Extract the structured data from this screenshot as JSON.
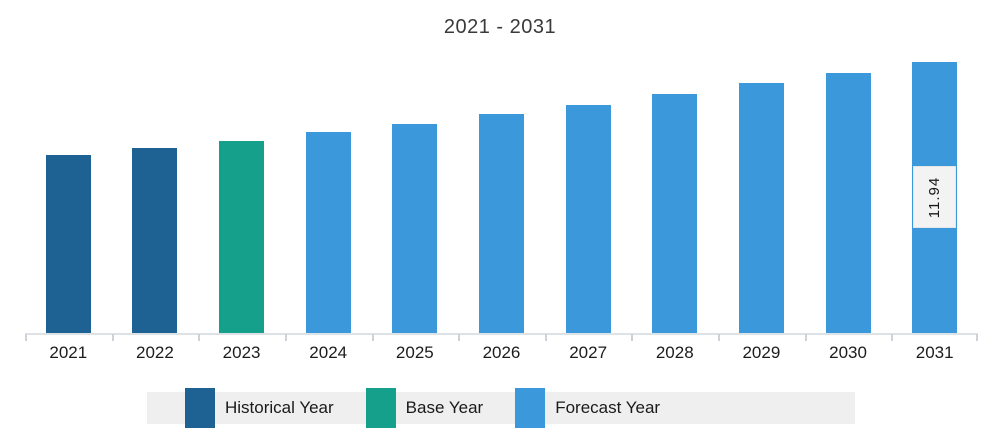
{
  "chart_data": {
    "type": "bar",
    "title": "2021 - 2031",
    "xlabel": "",
    "ylabel": "",
    "grid": false,
    "y_axis_visible": false,
    "ylim": [
      0,
      11.94
    ],
    "legend_position": "bottom",
    "categories": [
      "2021",
      "2022",
      "2023",
      "2024",
      "2025",
      "2026",
      "2027",
      "2028",
      "2029",
      "2030",
      "2031"
    ],
    "values": [
      7.84,
      8.15,
      8.46,
      8.86,
      9.21,
      9.64,
      10.05,
      10.53,
      11.02,
      11.46,
      11.94
    ],
    "series_by_category": [
      "Historical Year",
      "Historical Year",
      "Base Year",
      "Forecast Year",
      "Forecast Year",
      "Forecast Year",
      "Forecast Year",
      "Forecast Year",
      "Forecast Year",
      "Forecast Year",
      "Forecast Year"
    ],
    "series_colors": {
      "Historical Year": "#1e6193",
      "Base Year": "#15a08b",
      "Forecast Year": "#3b99db"
    },
    "data_labels": [
      {
        "category": "2031",
        "text": "11.94",
        "rotated": true
      }
    ]
  },
  "legend": {
    "items": [
      {
        "label": "Historical Year",
        "color": "#1e6193"
      },
      {
        "label": "Base Year",
        "color": "#15a08b"
      },
      {
        "label": "Forecast Year",
        "color": "#3b99db"
      }
    ]
  },
  "colors": {
    "axis_line": "#dde2e6",
    "tick": "#ccd2d7",
    "legend_strip": "#efefef",
    "data_label_bg": "#f3f3f3"
  }
}
